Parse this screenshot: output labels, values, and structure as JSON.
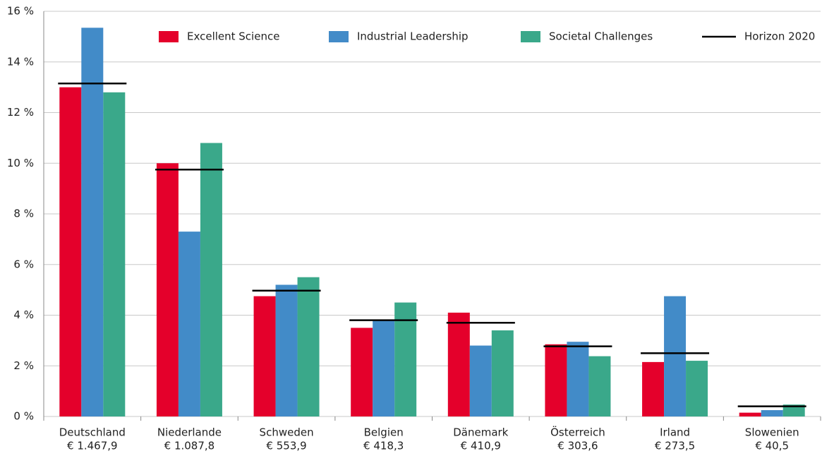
{
  "chart_data": {
    "type": "bar",
    "categories": [
      "Deutschland",
      "Niederlande",
      "Schweden",
      "Belgien",
      "Dänemark",
      "Österreich",
      "Irland",
      "Slowenien"
    ],
    "category_sublabels": [
      "€ 1.467,9",
      "€ 1.087,8",
      "€ 553,9",
      "€ 418,3",
      "€ 410,9",
      "€ 303,6",
      "€ 273,5",
      "€ 40,5"
    ],
    "series": [
      {
        "name": "Excellent Science",
        "color": "#e4002b",
        "values": [
          13.0,
          10.0,
          4.75,
          3.5,
          4.1,
          2.85,
          2.15,
          0.15
        ]
      },
      {
        "name": "Industrial Leadership",
        "color": "#428bc8",
        "values": [
          15.35,
          7.3,
          5.2,
          3.8,
          2.8,
          2.95,
          4.75,
          0.25
        ]
      },
      {
        "name": "Societal Challenges",
        "color": "#3aa88a",
        "values": [
          12.8,
          10.8,
          5.5,
          4.5,
          3.4,
          2.38,
          2.2,
          0.47
        ]
      },
      {
        "name": "Horizon 2020",
        "color": "#000000",
        "style": "hline",
        "values": [
          13.15,
          9.75,
          4.97,
          3.8,
          3.7,
          2.77,
          2.5,
          0.4
        ]
      }
    ],
    "ylim": [
      0,
      16
    ],
    "yticks": [
      {
        "value": 0,
        "label": "0 %"
      },
      {
        "value": 2,
        "label": "2 %"
      },
      {
        "value": 4,
        "label": "4 %"
      },
      {
        "value": 6,
        "label": "6 %"
      },
      {
        "value": 8,
        "label": "8 %"
      },
      {
        "value": 10,
        "label": "10 %"
      },
      {
        "value": 12,
        "label": "12 %"
      },
      {
        "value": 14,
        "label": "14 %"
      },
      {
        "value": 16,
        "label": "16 %"
      }
    ],
    "grid": true,
    "legend": "top"
  }
}
